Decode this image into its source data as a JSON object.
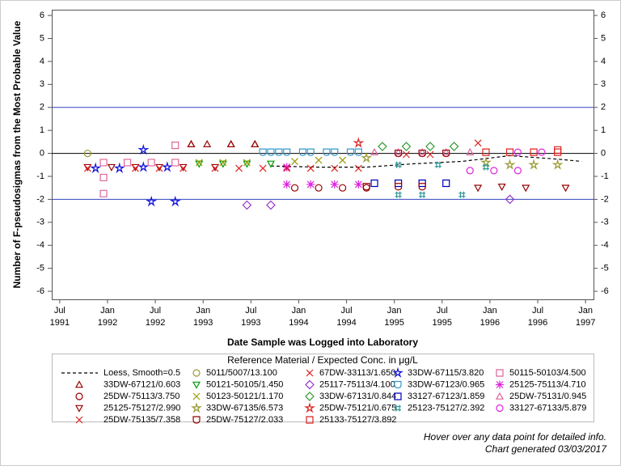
{
  "chart_data": {
    "type": "scatter",
    "y_label": "Number of F-pseudosigmas from the Most Probable Value",
    "x_label": "Date Sample was Logged into Laboratory",
    "legend_title": "Reference Material / Expected Conc. in μg/L",
    "footnotes": [
      "Hover over any data point for detailed info.",
      "Chart generated 03/03/2017"
    ],
    "xlim": [
      "1991-06",
      "1997-02"
    ],
    "ylim": [
      -6.35,
      6.25
    ],
    "yticks": [
      -6,
      -5,
      -4,
      -3,
      -2,
      -1,
      0,
      1,
      2,
      3,
      4,
      5,
      6
    ],
    "xticks": [
      {
        "value": "1991-07",
        "label": [
          "Jul",
          "1991"
        ]
      },
      {
        "value": "1992-01",
        "label": [
          "Jan",
          "1992"
        ]
      },
      {
        "value": "1992-07",
        "label": [
          "Jul",
          "1992"
        ]
      },
      {
        "value": "1993-01",
        "label": [
          "Jan",
          "1993"
        ]
      },
      {
        "value": "1993-07",
        "label": [
          "Jul",
          "1993"
        ]
      },
      {
        "value": "1994-01",
        "label": [
          "Jan",
          "1994"
        ]
      },
      {
        "value": "1994-07",
        "label": [
          "Jul",
          "1994"
        ]
      },
      {
        "value": "1995-01",
        "label": [
          "Jan",
          "1995"
        ]
      },
      {
        "value": "1995-07",
        "label": [
          "Jul",
          "1995"
        ]
      },
      {
        "value": "1996-01",
        "label": [
          "Jan",
          "1996"
        ]
      },
      {
        "value": "1996-07",
        "label": [
          "Jul",
          "1996"
        ]
      },
      {
        "value": "1997-01",
        "label": [
          "Jan",
          "1997"
        ]
      }
    ],
    "reflines": [
      {
        "value": 2,
        "color": "#3344bb"
      },
      {
        "value": 0,
        "color": "#000000"
      },
      {
        "value": -2,
        "color": "#3344bb"
      }
    ],
    "series": [
      {
        "name": "Loess, Smooth=0.5",
        "color": "#000000",
        "marker": "dashed-line",
        "x": [
          "1993-09",
          "1994-03",
          "1994-09",
          "1995-03",
          "1995-09",
          "1996-03",
          "1996-09",
          "1996-12"
        ],
        "values": [
          -0.55,
          -0.6,
          -0.6,
          -0.45,
          -0.35,
          -0.1,
          -0.25,
          -0.35
        ]
      },
      {
        "name": "5011/5007/13.100",
        "color": "#999933",
        "marker": "circle",
        "x": [
          "1991-10"
        ],
        "values": [
          0.0
        ]
      },
      {
        "name": "67DW-33113/1.650",
        "color": "#dd2222",
        "marker": "x",
        "x": [
          "1993-11",
          "1995-02",
          "1995-05"
        ],
        "values": [
          -0.6,
          -0.05,
          -0.05
        ]
      },
      {
        "name": "33DW-67115/3.820",
        "color": "#1111dd",
        "marker": "star",
        "x": [
          "1991-11",
          "1992-02",
          "1992-05",
          "1992-05",
          "1992-06",
          "1992-08",
          "1992-09"
        ],
        "values": [
          -0.65,
          -0.65,
          -0.6,
          0.15,
          -2.1,
          -0.6,
          -2.1
        ]
      },
      {
        "name": "50115-50103/4.500",
        "color": "#dd6699",
        "marker": "square",
        "x": [
          "1991-12",
          "1991-12",
          "1991-12",
          "1992-03",
          "1992-06",
          "1992-09",
          "1992-09"
        ],
        "values": [
          -1.75,
          -1.05,
          -0.4,
          -0.4,
          -0.4,
          0.35,
          -0.4
        ]
      },
      {
        "name": "33DW-67121/0.603",
        "color": "#990000",
        "marker": "triangle",
        "x": [
          "1992-11",
          "1992-11",
          "1993-01",
          "1993-04",
          "1993-04",
          "1993-07",
          "1993-07"
        ],
        "values": [
          0.4,
          0.4,
          0.4,
          0.4,
          0.4,
          0.4,
          0.4
        ]
      },
      {
        "name": "50121-50105/1.450",
        "color": "#009900",
        "marker": "triangle-down",
        "x": [
          "1992-12",
          "1993-03",
          "1993-06",
          "1993-09"
        ],
        "values": [
          -0.45,
          -0.45,
          -0.45,
          -0.45
        ]
      },
      {
        "name": "25117-75113/4.100",
        "color": "#9933cc",
        "marker": "diamond",
        "x": [
          "1993-06",
          "1993-09",
          "1996-03"
        ],
        "values": [
          -2.25,
          -2.25,
          -2.0
        ]
      },
      {
        "name": "33DW-67123/0.965",
        "color": "#3399cc",
        "marker": "shield",
        "x": [
          "1993-08",
          "1993-09",
          "1993-10",
          "1993-11",
          "1994-01",
          "1994-02",
          "1994-04",
          "1994-05",
          "1994-07",
          "1994-08"
        ],
        "values": [
          0.05,
          0.05,
          0.05,
          0.05,
          0.05,
          0.05,
          0.05,
          0.05,
          0.05,
          0.05
        ]
      },
      {
        "name": "25125-75113/4.710",
        "color": "#dd22dd",
        "marker": "asterisk",
        "x": [
          "1993-11",
          "1993-11",
          "1994-02",
          "1994-05",
          "1994-08"
        ],
        "values": [
          -1.35,
          -0.6,
          -1.35,
          -1.35,
          -1.35
        ]
      },
      {
        "name": "25DW-75113/3.750",
        "color": "#990000",
        "marker": "circle",
        "x": [
          "1993-12",
          "1994-03",
          "1994-06",
          "1994-09"
        ],
        "values": [
          -1.5,
          -1.5,
          -1.5,
          -1.5
        ]
      },
      {
        "name": "50123-50121/1.170",
        "color": "#999900",
        "marker": "x",
        "x": [
          "1992-12",
          "1993-03",
          "1993-06",
          "1993-12",
          "1994-03",
          "1994-06"
        ],
        "values": [
          -0.4,
          -0.4,
          -0.4,
          -0.35,
          -0.3,
          -0.3
        ]
      },
      {
        "name": "33DW-67131/0.844",
        "color": "#339933",
        "marker": "diamond",
        "x": [
          "1994-11",
          "1995-02",
          "1995-05",
          "1995-08"
        ],
        "values": [
          0.3,
          0.3,
          0.3,
          0.3
        ]
      },
      {
        "name": "33127-67123/1.859",
        "color": "#0000bb",
        "marker": "square",
        "x": [
          "1994-10",
          "1995-01",
          "1995-04",
          "1995-07"
        ],
        "values": [
          -1.3,
          -1.3,
          -1.3,
          -1.3
        ]
      },
      {
        "name": "25DW-75131/0.945",
        "color": "#dd6699",
        "marker": "triangle",
        "x": [
          "1994-10",
          "1995-01",
          "1995-04",
          "1995-07",
          "1995-10"
        ],
        "values": [
          0.05,
          0.05,
          0.05,
          0.05,
          0.05
        ]
      },
      {
        "name": "25125-75127/2.990",
        "color": "#990000",
        "marker": "triangle-down",
        "x": [
          "1991-10",
          "1992-01",
          "1992-04",
          "1992-07",
          "1992-10",
          "1993-02",
          "1995-11",
          "1996-02",
          "1996-05",
          "1996-10"
        ],
        "values": [
          -0.6,
          -0.6,
          -0.6,
          -0.6,
          -0.6,
          -0.6,
          -1.5,
          -1.45,
          -1.5,
          -1.5
        ]
      },
      {
        "name": "33DW-67135/6.573",
        "color": "#999933",
        "marker": "star",
        "x": [
          "1994-09",
          "1995-12",
          "1996-03",
          "1996-06",
          "1996-09"
        ],
        "values": [
          -0.2,
          -0.4,
          -0.5,
          -0.5,
          -0.5
        ]
      },
      {
        "name": "25DW-75121/0.675",
        "color": "#dd2222",
        "marker": "star",
        "x": [
          "1994-08"
        ],
        "values": [
          0.45
        ]
      },
      {
        "name": "25123-75127/2.392",
        "color": "#339999",
        "marker": "hash",
        "x": [
          "1995-01",
          "1995-04",
          "1995-09",
          "1995-01",
          "1995-06",
          "1995-12"
        ],
        "values": [
          -1.8,
          -1.8,
          -1.8,
          -0.5,
          -0.5,
          -0.6
        ]
      },
      {
        "name": "33127-67133/5.879",
        "color": "#dd22dd",
        "marker": "circle",
        "x": [
          "1995-10",
          "1996-01",
          "1996-04",
          "1996-04",
          "1996-07"
        ],
        "values": [
          -0.75,
          -0.75,
          -0.75,
          0.05,
          0.05
        ]
      },
      {
        "name": "25DW-75135/7.358",
        "color": "#dd2222",
        "marker": "x",
        "x": [
          "1991-10",
          "1992-04",
          "1992-07",
          "1992-10",
          "1993-02",
          "1993-05",
          "1993-08",
          "1993-11",
          "1994-02",
          "1994-05",
          "1994-08",
          "1995-11"
        ],
        "values": [
          -0.65,
          -0.65,
          -0.65,
          -0.65,
          -0.65,
          -0.65,
          -0.65,
          -0.65,
          -0.65,
          -0.65,
          -0.65,
          0.45
        ]
      },
      {
        "name": "25DW-75127/2.033",
        "color": "#990000",
        "marker": "shield",
        "x": [
          "1994-09",
          "1995-01",
          "1995-04",
          "1995-01",
          "1995-04",
          "1995-07"
        ],
        "values": [
          -1.45,
          -1.45,
          -1.45,
          0.0,
          0.0,
          0.0
        ]
      },
      {
        "name": "25133-75127/3.892",
        "color": "#dd2222",
        "marker": "square",
        "x": [
          "1995-12",
          "1996-03",
          "1996-06",
          "1996-09",
          "1996-09"
        ],
        "values": [
          0.05,
          0.05,
          0.05,
          0.05,
          0.15
        ]
      }
    ]
  }
}
